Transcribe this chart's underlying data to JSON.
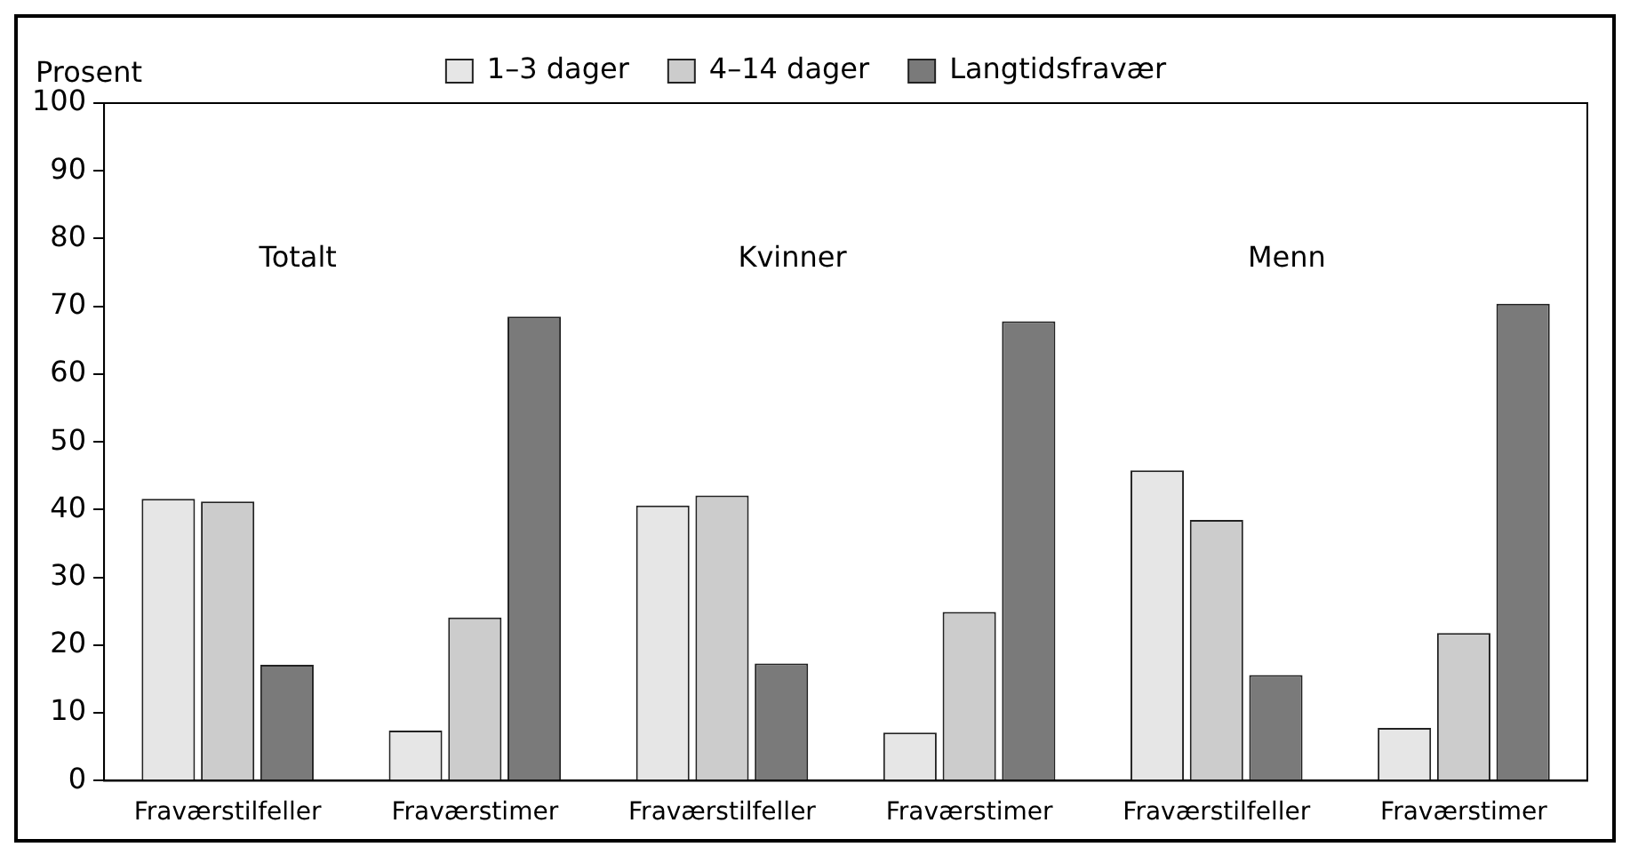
{
  "chart_data": {
    "type": "bar",
    "ylabel": "Prosent",
    "categories": [
      "Fraværstilfeller",
      "Fraværstimer",
      "Fraværstilfeller",
      "Fraværstimer",
      "Fraværstilfeller",
      "Fraværstimer"
    ],
    "series": [
      {
        "name": "1–3 dager",
        "color": "#e6e6e6",
        "values": [
          41.6,
          7.4,
          40.6,
          7.1,
          45.8,
          7.8
        ]
      },
      {
        "name": "4–14 dager",
        "color": "#cccccc",
        "values": [
          41.2,
          24.1,
          42.1,
          24.9,
          38.5,
          21.8
        ]
      },
      {
        "name": "Langtidsfravær",
        "color": "#7a7a7a",
        "values": [
          17.1,
          68.5,
          17.3,
          67.8,
          15.6,
          70.4
        ]
      }
    ],
    "annotations": [
      "Totalt",
      "Kvinner",
      "Menn"
    ],
    "ylim": [
      0,
      100
    ],
    "yticks": [
      0,
      10,
      20,
      30,
      40,
      50,
      60,
      70,
      80,
      90,
      100
    ],
    "grid": false,
    "legend": "top"
  }
}
